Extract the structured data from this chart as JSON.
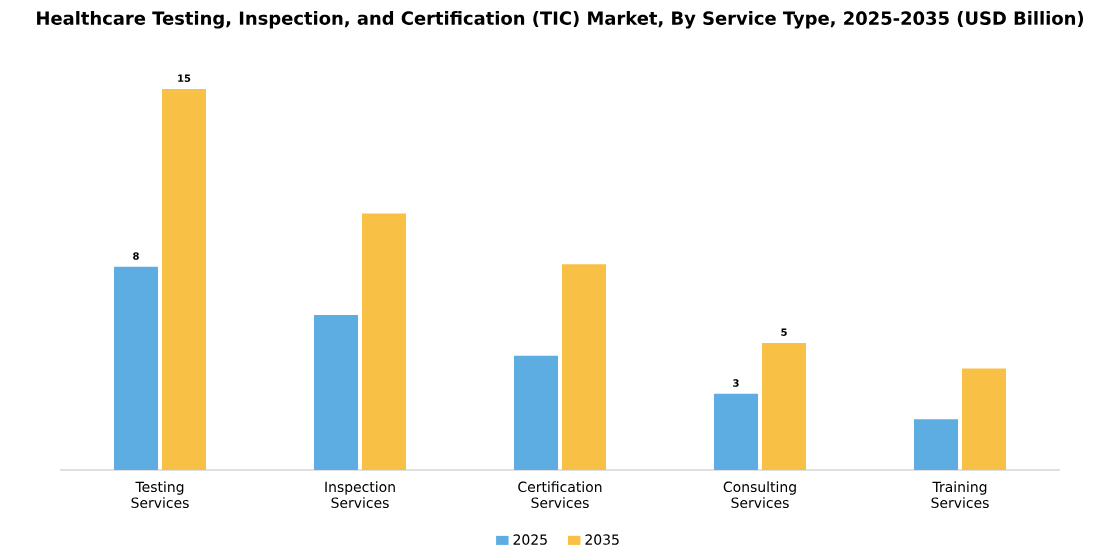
{
  "chart_data": {
    "type": "bar",
    "title": "Healthcare Testing, Inspection, and Certification (TIC) Market, By Service Type, 2025-2035 (USD Billion)",
    "categories": [
      "Testing Services",
      "Inspection Services",
      "Certification Services",
      "Consulting Services",
      "Training Services"
    ],
    "series": [
      {
        "name": "2025",
        "color": "#5dade2",
        "values": [
          8,
          6.1,
          4.5,
          3,
          2
        ],
        "value_labels": [
          "8",
          null,
          null,
          "3",
          null
        ]
      },
      {
        "name": "2035",
        "color": "#f8c146",
        "values": [
          15,
          10.1,
          8.1,
          5,
          4
        ],
        "value_labels": [
          "15",
          null,
          null,
          "5",
          null
        ]
      }
    ],
    "legend": "bottom"
  }
}
